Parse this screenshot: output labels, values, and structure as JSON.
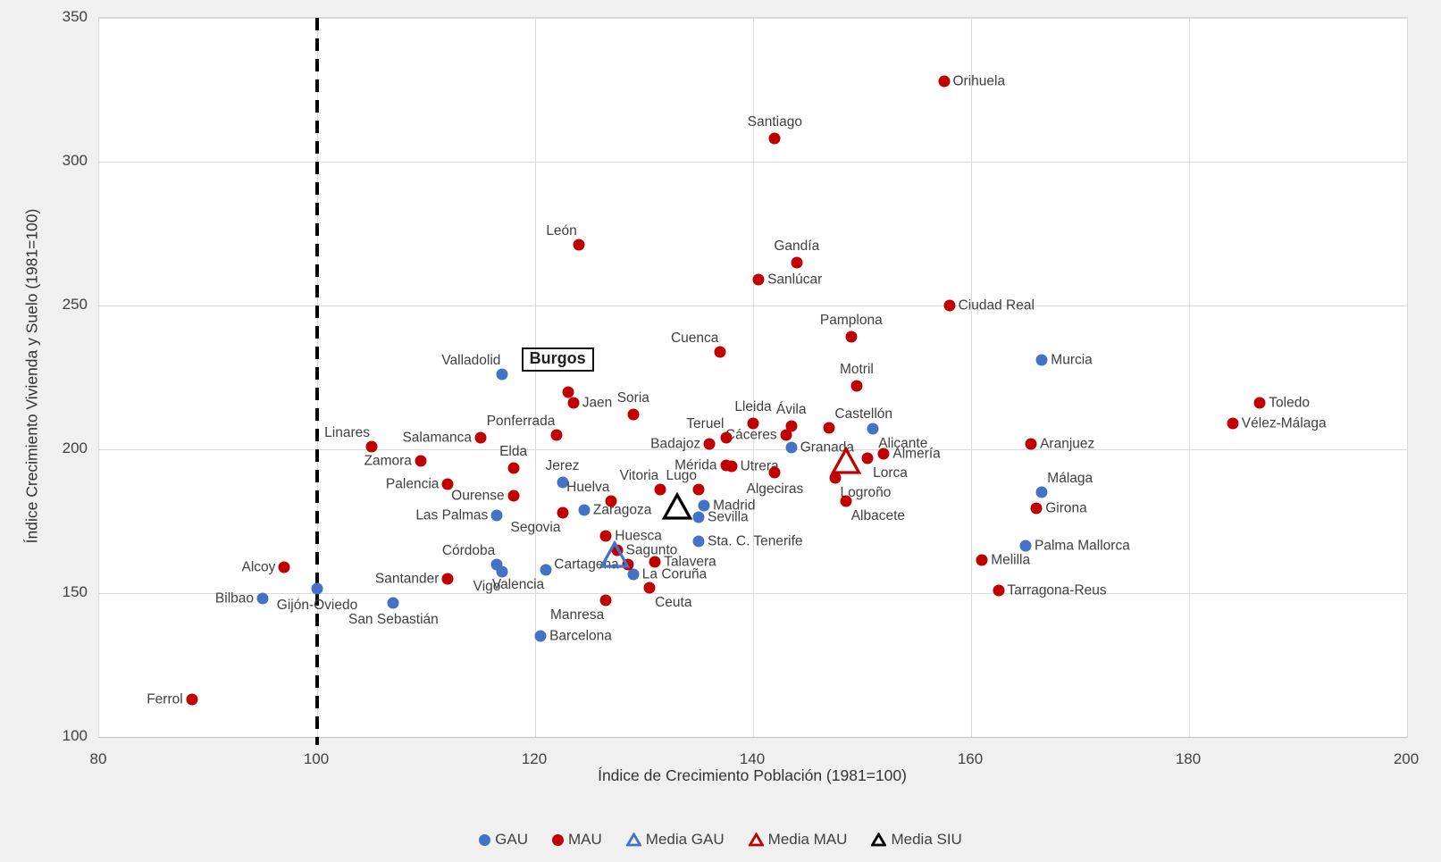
{
  "chart_data": {
    "type": "scatter",
    "xlabel": "Índice de Crecimiento Población (1981=100)",
    "ylabel": "Índice Crecimiento Vivienda y Suelo (1981=100)",
    "xlim": [
      80,
      200
    ],
    "ylim": [
      100,
      350
    ],
    "xticks": [
      80,
      100,
      120,
      140,
      160,
      180,
      200
    ],
    "yticks": [
      100,
      150,
      200,
      250,
      300,
      350
    ],
    "grid": true,
    "reference_line": {
      "axis": "x",
      "value": 100,
      "style": "dashed",
      "color": "#000000"
    },
    "highlighted_point": "Burgos",
    "series": [
      {
        "name": "GAU",
        "marker": "circle",
        "color": "#4472C4",
        "points": [
          {
            "city": "Valladolid",
            "x": 117,
            "y": 226,
            "label_pos": "above-left"
          },
          {
            "city": "Murcia",
            "x": 166.5,
            "y": 231,
            "label_pos": "right"
          },
          {
            "city": "Alicante",
            "x": 151,
            "y": 207,
            "label_pos": "below-right"
          },
          {
            "city": "Granada",
            "x": 143.5,
            "y": 200.5,
            "label_pos": "right"
          },
          {
            "city": "Jerez",
            "x": 122.5,
            "y": 188.5,
            "label_pos": "above"
          },
          {
            "city": "Málaga",
            "x": 166.5,
            "y": 185,
            "label_pos": "above-right"
          },
          {
            "city": "Zaragoza",
            "x": 124.5,
            "y": 179,
            "label_pos": "right"
          },
          {
            "city": "Las Palmas",
            "x": 116.5,
            "y": 177,
            "label_pos": "left"
          },
          {
            "city": "Madrid",
            "x": 135.5,
            "y": 180.5,
            "label_pos": "right"
          },
          {
            "city": "Sevilla",
            "x": 135,
            "y": 176.5,
            "label_pos": "right"
          },
          {
            "city": "Sta. C. Tenerife",
            "x": 135,
            "y": 168,
            "label_pos": "right"
          },
          {
            "city": "Palma Mallorca",
            "x": 165,
            "y": 166.5,
            "label_pos": "right"
          },
          {
            "city": "Córdoba",
            "x": 116.5,
            "y": 160,
            "label_pos": "above-left"
          },
          {
            "city": "Vigo",
            "x": 117,
            "y": 157.5,
            "label_pos": "below-left"
          },
          {
            "city": "Valencia",
            "x": 121,
            "y": 158,
            "label_pos": "below-left"
          },
          {
            "city": "La Coruña",
            "x": 129,
            "y": 156.5,
            "label_pos": "right"
          },
          {
            "city": "Barcelona",
            "x": 120.5,
            "y": 135,
            "label_pos": "right"
          },
          {
            "city": "Bilbao",
            "x": 95,
            "y": 148,
            "label_pos": "left"
          },
          {
            "city": "Gijón-Oviedo",
            "x": 100,
            "y": 151.5,
            "label_pos": "below"
          },
          {
            "city": "San Sebastián",
            "x": 107,
            "y": 146.5,
            "label_pos": "below"
          }
        ]
      },
      {
        "name": "MAU",
        "marker": "circle",
        "color": "#C00000",
        "points": [
          {
            "city": "Orihuela",
            "x": 157.5,
            "y": 328,
            "label_pos": "right"
          },
          {
            "city": "Santiago",
            "x": 142,
            "y": 308,
            "label_pos": "above"
          },
          {
            "city": "León",
            "x": 124,
            "y": 271,
            "label_pos": "above-left"
          },
          {
            "city": "Gandía",
            "x": 144,
            "y": 265,
            "label_pos": "above"
          },
          {
            "city": "Sanlúcar",
            "x": 140.5,
            "y": 259,
            "label_pos": "right"
          },
          {
            "city": "Ciudad Real",
            "x": 158,
            "y": 250,
            "label_pos": "right"
          },
          {
            "city": "Pamplona",
            "x": 149,
            "y": 239,
            "label_pos": "above"
          },
          {
            "city": "Cuenca",
            "x": 137,
            "y": 234,
            "label_pos": "above-left"
          },
          {
            "city": "Motril",
            "x": 149.5,
            "y": 222,
            "label_pos": "above"
          },
          {
            "city": "Burgos",
            "x": 123,
            "y": 220,
            "label_pos": "boxed"
          },
          {
            "city": "Jaen",
            "x": 123.5,
            "y": 216,
            "label_pos": "right"
          },
          {
            "city": "Toledo",
            "x": 186.5,
            "y": 216,
            "label_pos": "right"
          },
          {
            "city": "Soria",
            "x": 129,
            "y": 212,
            "label_pos": "above"
          },
          {
            "city": "Vélez-Málaga",
            "x": 184,
            "y": 209,
            "label_pos": "right"
          },
          {
            "city": "Lleida",
            "x": 140,
            "y": 209,
            "label_pos": "above"
          },
          {
            "city": "Ávila",
            "x": 143.5,
            "y": 208,
            "label_pos": "above"
          },
          {
            "city": "Castellón",
            "x": 147,
            "y": 207.5,
            "label_pos": "above-right"
          },
          {
            "city": "Cáceres",
            "x": 143,
            "y": 205,
            "label_pos": "left"
          },
          {
            "city": "Ponferrada",
            "x": 122,
            "y": 205,
            "label_pos": "above-left"
          },
          {
            "city": "Teruel",
            "x": 137.5,
            "y": 204,
            "label_pos": "above-left"
          },
          {
            "city": "Salamanca",
            "x": 115,
            "y": 204,
            "label_pos": "left"
          },
          {
            "city": "Badajoz",
            "x": 136,
            "y": 202,
            "label_pos": "left"
          },
          {
            "city": "Aranjuez",
            "x": 165.5,
            "y": 202,
            "label_pos": "right"
          },
          {
            "city": "Linares",
            "x": 105,
            "y": 201,
            "label_pos": "above-left"
          },
          {
            "city": "Almería",
            "x": 152,
            "y": 198.5,
            "label_pos": "right"
          },
          {
            "city": "Lorca",
            "x": 150.5,
            "y": 197,
            "label_pos": "below-right"
          },
          {
            "city": "Zamora",
            "x": 109.5,
            "y": 196,
            "label_pos": "left"
          },
          {
            "city": "Mérida",
            "x": 137.5,
            "y": 194.5,
            "label_pos": "left"
          },
          {
            "city": "Utrera",
            "x": 138,
            "y": 194,
            "label_pos": "right"
          },
          {
            "city": "Elda",
            "x": 118,
            "y": 193.5,
            "label_pos": "above"
          },
          {
            "city": "Algeciras",
            "x": 142,
            "y": 192,
            "label_pos": "below"
          },
          {
            "city": "Logroño",
            "x": 147.5,
            "y": 190,
            "label_pos": "below-right"
          },
          {
            "city": "Palencia",
            "x": 112,
            "y": 188,
            "label_pos": "left"
          },
          {
            "city": "Vitoria",
            "x": 131.5,
            "y": 186,
            "label_pos": "above-left"
          },
          {
            "city": "Lugo",
            "x": 135,
            "y": 186,
            "label_pos": "above-left"
          },
          {
            "city": "Ourense",
            "x": 118,
            "y": 184,
            "label_pos": "left"
          },
          {
            "city": "Huelva",
            "x": 127,
            "y": 182,
            "label_pos": "above-left"
          },
          {
            "city": "Albacete",
            "x": 148.5,
            "y": 182,
            "label_pos": "below-right"
          },
          {
            "city": "Girona",
            "x": 166,
            "y": 179.5,
            "label_pos": "right"
          },
          {
            "city": "Segovia",
            "x": 122.5,
            "y": 178,
            "label_pos": "below-left"
          },
          {
            "city": "Huesca",
            "x": 126.5,
            "y": 170,
            "label_pos": "right"
          },
          {
            "city": "Sagunto",
            "x": 127.5,
            "y": 165,
            "label_pos": "right"
          },
          {
            "city": "Melilla",
            "x": 161,
            "y": 161.5,
            "label_pos": "right"
          },
          {
            "city": "Talavera",
            "x": 131,
            "y": 161,
            "label_pos": "right"
          },
          {
            "city": "Cartagena",
            "x": 128.5,
            "y": 160,
            "label_pos": "left"
          },
          {
            "city": "Alcoy",
            "x": 97,
            "y": 159,
            "label_pos": "left"
          },
          {
            "city": "Santander",
            "x": 112,
            "y": 155,
            "label_pos": "left"
          },
          {
            "city": "Ceuta",
            "x": 130.5,
            "y": 152,
            "label_pos": "below-right"
          },
          {
            "city": "Tarragona-Reus",
            "x": 162.5,
            "y": 151,
            "label_pos": "right"
          },
          {
            "city": "Manresa",
            "x": 126.5,
            "y": 147.5,
            "label_pos": "below-left"
          },
          {
            "city": "Ferrol",
            "x": 88.5,
            "y": 113,
            "label_pos": "left"
          }
        ]
      },
      {
        "name": "Media GAU",
        "marker": "triangle-open",
        "color": "#4472C4",
        "points": [
          {
            "city": "",
            "x": 127.3,
            "y": 163.5,
            "label_pos": "none"
          }
        ]
      },
      {
        "name": "Media MAU",
        "marker": "triangle-open",
        "color": "#C00000",
        "points": [
          {
            "city": "",
            "x": 148.5,
            "y": 196,
            "label_pos": "none"
          }
        ]
      },
      {
        "name": "Media SIU",
        "marker": "triangle-open",
        "color": "#000000",
        "points": [
          {
            "city": "",
            "x": 133,
            "y": 180,
            "label_pos": "none"
          }
        ]
      }
    ],
    "legend": {
      "position": "bottom-center",
      "entries": [
        {
          "label": "GAU",
          "marker": "circle",
          "color": "#4472C4"
        },
        {
          "label": "MAU",
          "marker": "circle",
          "color": "#C00000"
        },
        {
          "label": "Media GAU",
          "marker": "triangle-open",
          "color": "#4472C4"
        },
        {
          "label": "Media MAU",
          "marker": "triangle-open",
          "color": "#C00000"
        },
        {
          "label": "Media SIU",
          "marker": "triangle-open",
          "color": "#000000"
        }
      ]
    },
    "colors": {
      "grid": "#D9D9D9",
      "city_label": "#3F3F3F",
      "tick_label": "#404040",
      "background": "#F0F0F0",
      "plot_background": "#FFFFFF"
    }
  }
}
